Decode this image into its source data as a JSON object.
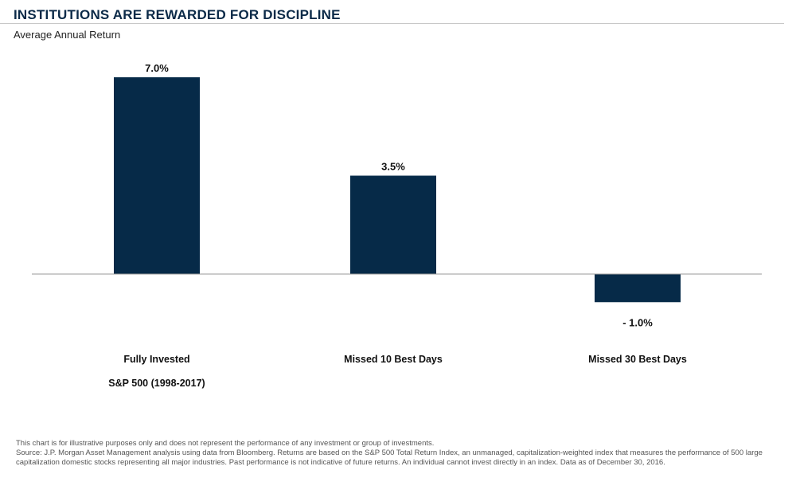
{
  "header": {
    "title": "INSTITUTIONS ARE REWARDED FOR DISCIPLINE",
    "subtitle": "Average Annual Return"
  },
  "chart_data": {
    "type": "bar",
    "categories": [
      "Fully Invested",
      "Missed 10 Best Days",
      "Missed 30 Best Days"
    ],
    "category_sublabels": [
      "S&P 500 (1998-2017)",
      "",
      ""
    ],
    "values": [
      7.0,
      3.5,
      -1.0
    ],
    "data_labels": [
      "7.0%",
      "3.5%",
      "- 1.0%"
    ],
    "title": "INSTITUTIONS ARE REWARDED FOR DISCIPLINE",
    "ylabel": "Average Annual Return",
    "xlabel": "",
    "ylim": [
      -1.0,
      7.0
    ],
    "grid": false,
    "legend": "none",
    "bar_color": "#062a48"
  },
  "footnote": {
    "line1": "This chart is for illustrative purposes only and does not represent the performance of any investment or group of investments.",
    "line2": "Source: J.P. Morgan Asset Management analysis using data from Bloomberg. Returns are based on the S&P 500 Total Return Index, an unmanaged, capitalization-weighted index that measures the performance of 500 large",
    "line3": "capitalization domestic stocks representing all major industries. Past performance is not indicative of future returns. An individual cannot invest directly in an index. Data as of December 30, 2016."
  }
}
